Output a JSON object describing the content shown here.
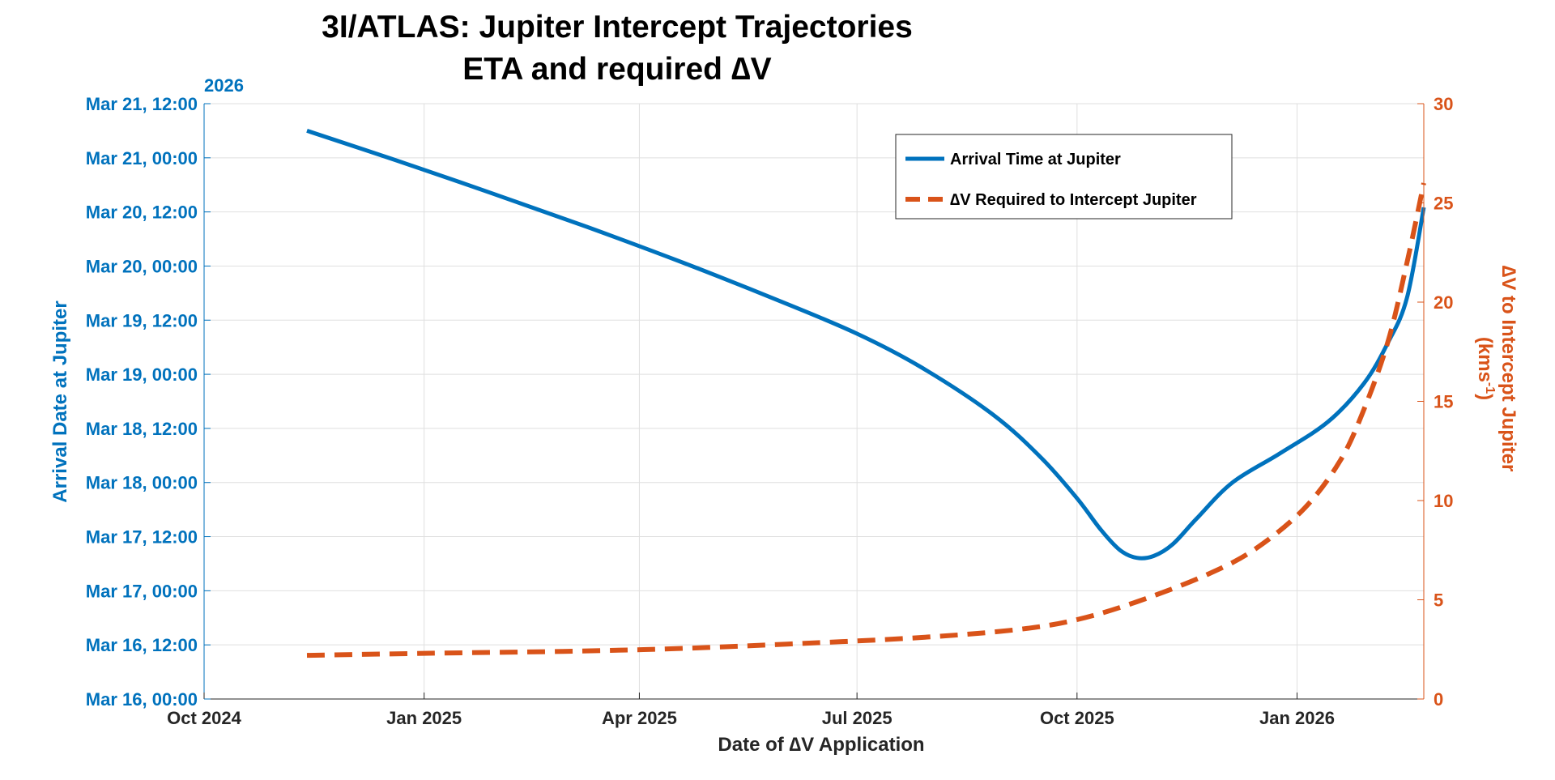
{
  "chart_data": {
    "type": "line",
    "title": [
      "3I/ATLAS: Jupiter Intercept Trajectories",
      "ETA and required ∆V"
    ],
    "xlabel": "Date of ∆V Application",
    "ylabel_left": "Arrival Date at Jupiter",
    "ylabel_right": [
      "∆V to Intercept Jupiter",
      "(kms",
      "-1",
      ")"
    ],
    "left_axis_year_label": "2026",
    "x_tick_labels": [
      "Oct 2024",
      "Jan 2025",
      "Apr 2025",
      "Jul 2025",
      "Oct 2025",
      "Jan 2026"
    ],
    "x_tick_days": [
      0,
      92,
      182,
      273,
      365,
      457
    ],
    "xlim_days": [
      0,
      510
    ],
    "x_day_zero": "2024-10-01",
    "left_tick_labels": [
      "Mar 16, 00:00",
      "Mar 16, 12:00",
      "Mar 17, 00:00",
      "Mar 17, 12:00",
      "Mar 18, 00:00",
      "Mar 18, 12:00",
      "Mar 19, 00:00",
      "Mar 19, 12:00",
      "Mar 20, 00:00",
      "Mar 20, 12:00",
      "Mar 21, 00:00",
      "Mar 21, 12:00"
    ],
    "left_tick_values_hours": [
      0,
      12,
      24,
      36,
      48,
      60,
      72,
      84,
      96,
      108,
      120,
      132
    ],
    "ylim_left_hours_from_2026-03-16_00:00": [
      0,
      132
    ],
    "right_tick_labels": [
      "0",
      "5",
      "10",
      "15",
      "20",
      "25",
      "30"
    ],
    "ylim_right": [
      0,
      30
    ],
    "grid": true,
    "legend_position": "top-right",
    "series": [
      {
        "name": "Arrival Time at Jupiter",
        "axis": "left",
        "color": "#0072BD",
        "style": "solid",
        "x_days": [
          43,
          80,
          120,
          160,
          200,
          240,
          273,
          300,
          330,
          350,
          365,
          375,
          383,
          390,
          397,
          405,
          415,
          430,
          450,
          470,
          485,
          495,
          503,
          510
        ],
        "y_hours": [
          126,
          119.5,
          112.2,
          104.7,
          96.8,
          88.4,
          81.0,
          73.5,
          63.0,
          53.5,
          44.5,
          37.5,
          33.0,
          31.3,
          31.7,
          34.3,
          40.0,
          48.0,
          54.5,
          61.5,
          70.0,
          79.0,
          89.0,
          109.0
        ]
      },
      {
        "name": "∆V Required to Intercept Jupiter",
        "axis": "right",
        "color": "#D95319",
        "style": "dashed",
        "x_days": [
          43,
          92,
          150,
          200,
          250,
          300,
          340,
          365,
          390,
          420,
          440,
          460,
          475,
          485,
          495,
          503,
          510
        ],
        "y_kms": [
          2.2,
          2.3,
          2.4,
          2.55,
          2.8,
          3.1,
          3.5,
          4.0,
          4.9,
          6.3,
          7.6,
          9.6,
          12.0,
          14.6,
          18.0,
          22.0,
          26.0
        ]
      }
    ]
  }
}
